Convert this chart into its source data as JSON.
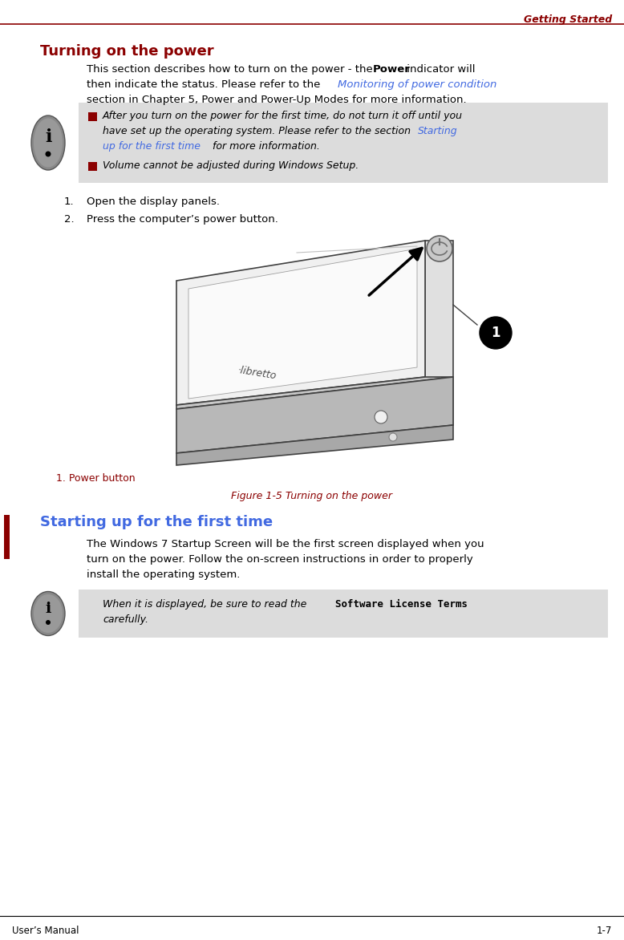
{
  "page_bg": "#ffffff",
  "header_line_color": "#8B0000",
  "header_text": "Getting Started",
  "header_text_color": "#8B0000",
  "footer_left": "User’s Manual",
  "footer_right": "1-7",
  "footer_text_color": "#000000",
  "section1_title": "Turning on the power",
  "section1_title_color": "#8B0000",
  "link_color": "#4169E1",
  "note_bg": "#DCDCDC",
  "note_bullet_color": "#8B0000",
  "figure_caption_label": "1. Power button",
  "figure_caption_label_color": "#8B0000",
  "figure_title": "Figure 1-5 Turning on the power",
  "figure_title_color": "#8B0000",
  "section2_title": "Starting up for the first time",
  "section2_title_color": "#4169E1",
  "left_bar_color": "#8B0000"
}
